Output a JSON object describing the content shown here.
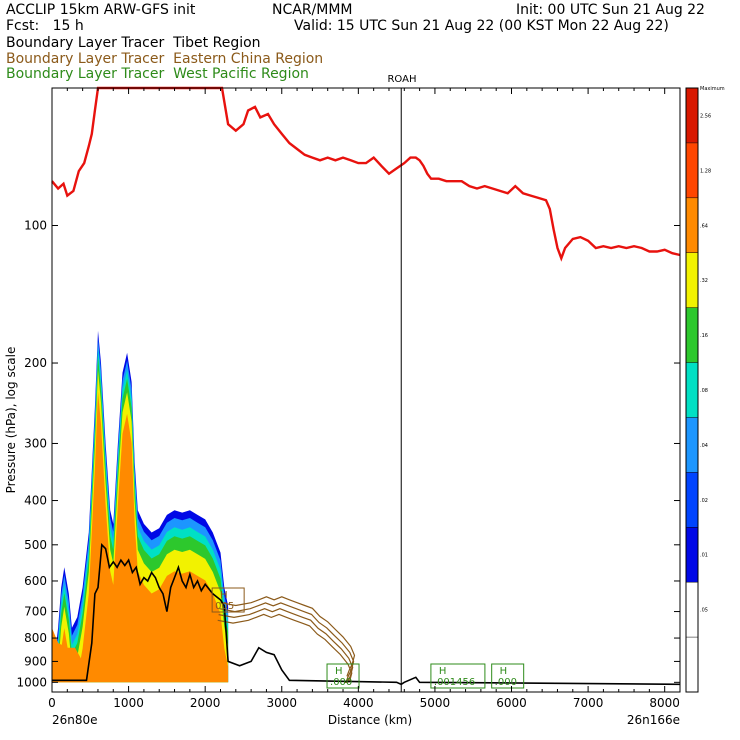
{
  "header": {
    "line1_left": "ACCLIP 15km ARW-GFS init",
    "line1_center": "NCAR/MMM",
    "line1_right": "Init: 00 UTC Sun 21 Aug 22",
    "line2_left": "Fcst:   15 h",
    "line2_right": "Valid: 15 UTC Sun 21 Aug 22 (00 KST Mon 22 Aug 22)",
    "tracer1": "Boundary Layer Tracer  Tibet Region",
    "tracer2": "Boundary Layer Tracer  Eastern China Region",
    "tracer3": "Boundary Layer Tracer  West Pacific Region",
    "tracer1_color": "#000000",
    "tracer2_color": "#8B5A1A",
    "tracer3_color": "#2E8B1A"
  },
  "chart_data": {
    "type": "area",
    "xlabel": "Distance (km)",
    "ylabel": "Pressure (hPa), log scale",
    "xlim": [
      0,
      8200
    ],
    "ylim": [
      1050,
      50
    ],
    "yscale": "log",
    "x_ticks": [
      "0",
      "1000",
      "2000",
      "3000",
      "4000",
      "5000",
      "6000",
      "7000",
      "8000"
    ],
    "y_ticks": [
      "100",
      "200",
      "300",
      "400",
      "500",
      "600",
      "700",
      "800",
      "900",
      "1000"
    ],
    "left_endpoint": "26n80e",
    "right_endpoint": "26n166e",
    "vertical_marker": {
      "label": "ROAH",
      "x": 4560
    },
    "tropopause": {
      "color": "#e8120e",
      "points": [
        [
          0,
          80
        ],
        [
          80,
          83
        ],
        [
          150,
          81
        ],
        [
          200,
          86
        ],
        [
          280,
          84
        ],
        [
          350,
          76
        ],
        [
          420,
          73
        ],
        [
          480,
          67
        ],
        [
          520,
          63
        ],
        [
          560,
          56
        ],
        [
          600,
          50
        ],
        [
          2220,
          50
        ],
        [
          2300,
          60
        ],
        [
          2400,
          62
        ],
        [
          2500,
          60
        ],
        [
          2560,
          56
        ],
        [
          2650,
          55
        ],
        [
          2720,
          58
        ],
        [
          2820,
          57
        ],
        [
          2900,
          60
        ],
        [
          3000,
          63
        ],
        [
          3100,
          66
        ],
        [
          3200,
          68
        ],
        [
          3300,
          70
        ],
        [
          3400,
          71
        ],
        [
          3500,
          72
        ],
        [
          3600,
          71
        ],
        [
          3700,
          72
        ],
        [
          3800,
          71
        ],
        [
          3900,
          72
        ],
        [
          4000,
          73
        ],
        [
          4100,
          73
        ],
        [
          4200,
          71
        ],
        [
          4300,
          74
        ],
        [
          4400,
          77
        ],
        [
          4500,
          75
        ],
        [
          4600,
          73
        ],
        [
          4680,
          71
        ],
        [
          4750,
          71
        ],
        [
          4800,
          72
        ],
        [
          4850,
          74
        ],
        [
          4900,
          77
        ],
        [
          4950,
          79
        ],
        [
          5050,
          79
        ],
        [
          5150,
          80
        ],
        [
          5250,
          80
        ],
        [
          5350,
          80
        ],
        [
          5450,
          82
        ],
        [
          5550,
          83
        ],
        [
          5650,
          82
        ],
        [
          5750,
          83
        ],
        [
          5850,
          84
        ],
        [
          5950,
          85
        ],
        [
          6050,
          82
        ],
        [
          6150,
          85
        ],
        [
          6250,
          86
        ],
        [
          6350,
          87
        ],
        [
          6450,
          88
        ],
        [
          6500,
          92
        ],
        [
          6550,
          102
        ],
        [
          6600,
          112
        ],
        [
          6650,
          118
        ],
        [
          6700,
          112
        ],
        [
          6800,
          107
        ],
        [
          6900,
          106
        ],
        [
          7000,
          108
        ],
        [
          7100,
          112
        ],
        [
          7200,
          111
        ],
        [
          7300,
          112
        ],
        [
          7400,
          111
        ],
        [
          7500,
          112
        ],
        [
          7600,
          111
        ],
        [
          7700,
          112
        ],
        [
          7800,
          114
        ],
        [
          7900,
          114
        ],
        [
          8000,
          113
        ],
        [
          8100,
          115
        ],
        [
          8200,
          116
        ]
      ]
    },
    "boundary_layer_top": {
      "color": "#000000",
      "points": [
        [
          0,
          990
        ],
        [
          450,
          990
        ],
        [
          520,
          820
        ],
        [
          560,
          640
        ],
        [
          600,
          620
        ],
        [
          650,
          500
        ],
        [
          700,
          510
        ],
        [
          750,
          560
        ],
        [
          800,
          545
        ],
        [
          850,
          560
        ],
        [
          900,
          540
        ],
        [
          950,
          555
        ],
        [
          1000,
          540
        ],
        [
          1050,
          575
        ],
        [
          1100,
          560
        ],
        [
          1150,
          610
        ],
        [
          1200,
          590
        ],
        [
          1250,
          600
        ],
        [
          1300,
          575
        ],
        [
          1350,
          590
        ],
        [
          1400,
          620
        ],
        [
          1450,
          640
        ],
        [
          1500,
          700
        ],
        [
          1550,
          620
        ],
        [
          1600,
          590
        ],
        [
          1650,
          560
        ],
        [
          1700,
          600
        ],
        [
          1750,
          620
        ],
        [
          1800,
          580
        ],
        [
          1850,
          620
        ],
        [
          1900,
          600
        ],
        [
          1950,
          630
        ],
        [
          2000,
          610
        ],
        [
          2100,
          640
        ],
        [
          2200,
          660
        ],
        [
          2250,
          680
        ],
        [
          2300,
          900
        ],
        [
          2450,
          920
        ],
        [
          2600,
          900
        ],
        [
          2700,
          840
        ],
        [
          2800,
          860
        ],
        [
          2900,
          870
        ],
        [
          3000,
          940
        ],
        [
          3100,
          990
        ],
        [
          4500,
          1000
        ],
        [
          4560,
          1010
        ],
        [
          4600,
          1000
        ],
        [
          4750,
          975
        ],
        [
          4800,
          1000
        ],
        [
          8200,
          1010
        ]
      ]
    },
    "tracer_fill": {
      "levels": [
        ".05",
        ".01",
        ".02",
        ".04",
        ".08",
        ".16",
        ".32",
        ".64",
        "1.28",
        "2.56"
      ],
      "colors": [
        "#ffffff",
        "#ffffff",
        "#0008e6",
        "#0044ff",
        "#1c96ff",
        "#00e0c4",
        "#2dc82d",
        "#f2f200",
        "#ff8a00",
        "#ff4600",
        "#d81800"
      ],
      "top_label": "Maximum"
    },
    "h_markers": [
      {
        "label": "H",
        "value": "005",
        "x": 2300,
        "color": "#8B5A1A"
      },
      {
        "label": "H",
        "value": ".000",
        "x": 3800,
        "color": "#2E8B1A"
      },
      {
        "label": "H",
        "value": ".001456",
        "x": 5300,
        "color": "#2E8B1A"
      },
      {
        "label": "H",
        "value": ".000",
        "x": 5950,
        "color": "#2E8B1A"
      }
    ]
  }
}
